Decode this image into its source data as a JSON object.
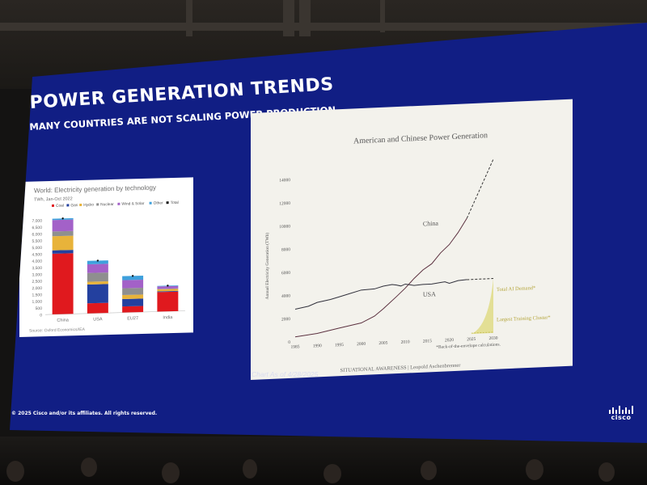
{
  "slide": {
    "title": "POWER GENERATION TRENDS",
    "subtitle": "MANY COUNTRIES ARE NOT SCALING POWER PRODUCTION",
    "copyright": "© 2025 Cisco and/or its affiliates. All rights reserved.",
    "logo": "cisco",
    "background_color": "#111e84"
  },
  "chart_data": [
    {
      "type": "bar",
      "stacked": true,
      "title": "World: Electricity generation by technology",
      "subtitle": "TWh, Jan-Oct 2022",
      "source": "Source: Oxford Economics/IEA",
      "categories": [
        "China",
        "USA",
        "EU27",
        "India"
      ],
      "yticks": [
        0,
        500,
        1000,
        1500,
        2000,
        2500,
        3000,
        3500,
        4000,
        4500,
        5000,
        5500,
        6000,
        6500,
        7000
      ],
      "ytick_labels": [
        "0",
        "500",
        "1,000",
        "1,500",
        "2,000",
        "2,500",
        "3,000",
        "3,500",
        "4,000",
        "4,500",
        "5,000",
        "5,500",
        "6,000",
        "6,500",
        "7,000"
      ],
      "ylim": [
        0,
        7500
      ],
      "legend": [
        "Coal",
        "Gas",
        "Hydro",
        "Nuclear",
        "Wind & Solar",
        "Other",
        "Total"
      ],
      "series": [
        {
          "name": "Coal",
          "color": "#e0191e",
          "values": [
            4500,
            750,
            450,
            1450
          ]
        },
        {
          "name": "Gas",
          "color": "#23409f",
          "values": [
            250,
            1400,
            550,
            50
          ]
        },
        {
          "name": "Hydro",
          "color": "#e8b33a",
          "values": [
            1050,
            200,
            300,
            150
          ]
        },
        {
          "name": "Nuclear",
          "color": "#8f8f8f",
          "values": [
            350,
            650,
            500,
            40
          ]
        },
        {
          "name": "Wind & Solar",
          "color": "#a361c8",
          "values": [
            850,
            650,
            600,
            180
          ]
        },
        {
          "name": "Other",
          "color": "#3ea0dc",
          "values": [
            100,
            250,
            300,
            40
          ]
        }
      ],
      "totals": [
        7100,
        3900,
        2700,
        1910
      ]
    },
    {
      "type": "line",
      "title": "American and Chinese Power Generation",
      "ylabel": "Annual Electricity Generation (TWh)",
      "xlabel": "",
      "xticks": [
        1985,
        1990,
        1995,
        2000,
        2005,
        2010,
        2015,
        2020,
        2025,
        2030
      ],
      "yticks": [
        0,
        2000,
        4000,
        6000,
        8000,
        10000,
        12000,
        14000
      ],
      "xlim": [
        1985,
        2030
      ],
      "ylim": [
        0,
        15000
      ],
      "series": [
        {
          "name": "China",
          "x": [
            1985,
            1990,
            1995,
            2000,
            2003,
            2005,
            2008,
            2010,
            2012,
            2014,
            2016,
            2018,
            2020,
            2022,
            2024
          ],
          "y": [
            410,
            620,
            1000,
            1360,
            1900,
            2500,
            3500,
            4200,
            5000,
            5700,
            6200,
            7100,
            7800,
            8800,
            10000
          ],
          "projection": {
            "x": [
              2024,
              2030
            ],
            "y": [
              10000,
              15000
            ]
          }
        },
        {
          "name": "USA",
          "x": [
            1985,
            1988,
            1990,
            1993,
            1995,
            1997,
            2000,
            2003,
            2005,
            2007,
            2008,
            2009,
            2010,
            2012,
            2014,
            2016,
            2018,
            2019,
            2020,
            2022,
            2024
          ],
          "y": [
            2800,
            3000,
            3300,
            3500,
            3700,
            3900,
            4200,
            4250,
            4450,
            4560,
            4500,
            4400,
            4550,
            4400,
            4450,
            4450,
            4550,
            4600,
            4450,
            4650,
            4700
          ],
          "projection": {
            "x": [
              2024,
              2030
            ],
            "y": [
              4700,
              4700
            ]
          }
        }
      ],
      "annotations": [
        {
          "text": "Total AI Demand*",
          "color": "#b4a53a"
        },
        {
          "text": "Largest Training Cluster*",
          "color": "#b4a53a"
        }
      ],
      "footnote": "*Back-of-the-envelope calculations.",
      "attribution": "SITUATIONAL AWARENESS | Leopold Aschenbrenner",
      "caption": "Chart As of 4/28/2025"
    }
  ]
}
